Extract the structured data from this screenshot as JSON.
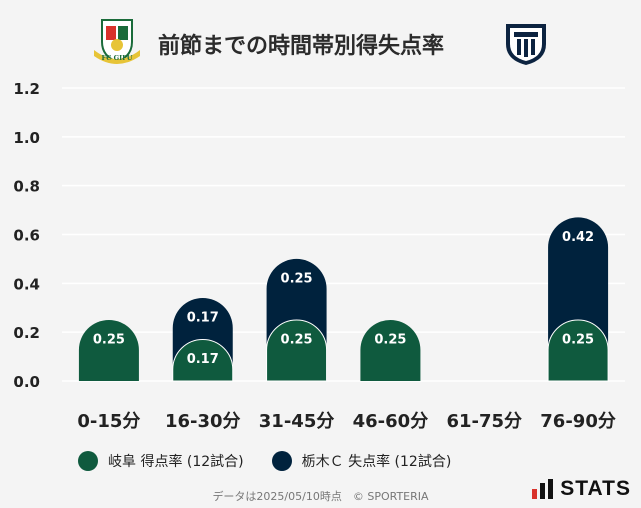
{
  "header": {
    "title": "前節までの時間帯別得失点率",
    "left_logo_text": "FC GIFU",
    "left_logo_icon": "fc-gifu-crest-icon",
    "right_logo_icon": "tochigi-city-emblem-icon"
  },
  "colors": {
    "gifu": "#0f5a3e",
    "tochigi": "#00223d",
    "background": "#f4f4f4",
    "grid": "#ffffff"
  },
  "chart_data": {
    "type": "bar",
    "categories": [
      "0-15分",
      "16-30分",
      "31-45分",
      "46-60分",
      "61-75分",
      "76-90分"
    ],
    "series": [
      {
        "name": "岐阜 得点率 (12試合)",
        "values": [
          0.25,
          0.17,
          0.25,
          0.25,
          0,
          0.25
        ]
      },
      {
        "name": "栃木Ｃ 失点率 (12試合)",
        "values": [
          0,
          0.17,
          0.25,
          0,
          0,
          0.42
        ]
      }
    ],
    "stacked": true,
    "data_labels": [
      [
        "0.25",
        "0.17",
        "0.25",
        "0.25",
        "",
        "0.25"
      ],
      [
        "",
        "0.17",
        "0.25",
        "",
        "",
        "0.42"
      ]
    ],
    "yticks": [
      "0.0",
      "0.2",
      "0.4",
      "0.6",
      "0.8",
      "1.0",
      "1.2"
    ],
    "ylim": [
      0,
      1.2
    ],
    "grid": true,
    "legend_position": "bottom-left"
  },
  "legend": {
    "gifu_label": "岐阜 得点率 (12試合)",
    "tochigi_label": "栃木Ｃ 失点率 (12試合)"
  },
  "footer": {
    "note": "データは2025/05/10時点　© SPORTERIA"
  },
  "brand": {
    "stats_label": "STATS"
  }
}
